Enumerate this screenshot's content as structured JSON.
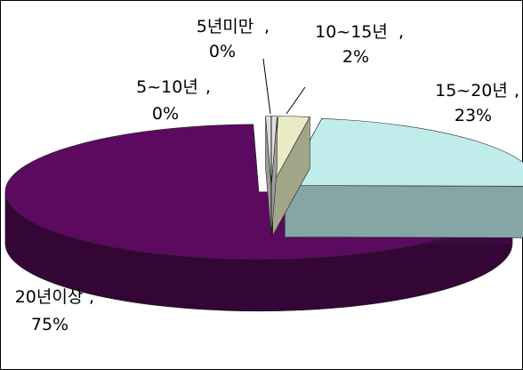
{
  "chart_data": {
    "type": "pie",
    "style": "3d-exploded",
    "title": "",
    "slices": [
      {
        "label": "5년미만",
        "value": 0,
        "percent_label": "0%",
        "color": "#e0e0e0"
      },
      {
        "label": "10~15년",
        "value": 2,
        "percent_label": "2%",
        "color": "#e9ebc4"
      },
      {
        "label": "15~20년",
        "value": 23,
        "percent_label": "23%",
        "color": "#c0ecec"
      },
      {
        "label": "20년이상",
        "value": 75,
        "percent_label": "75%",
        "color": "#5c0a60"
      },
      {
        "label": "5~10년",
        "value": 0,
        "percent_label": "0%",
        "color": "#dddddd"
      }
    ],
    "legend": "none",
    "data_labels": "category-and-percent"
  }
}
